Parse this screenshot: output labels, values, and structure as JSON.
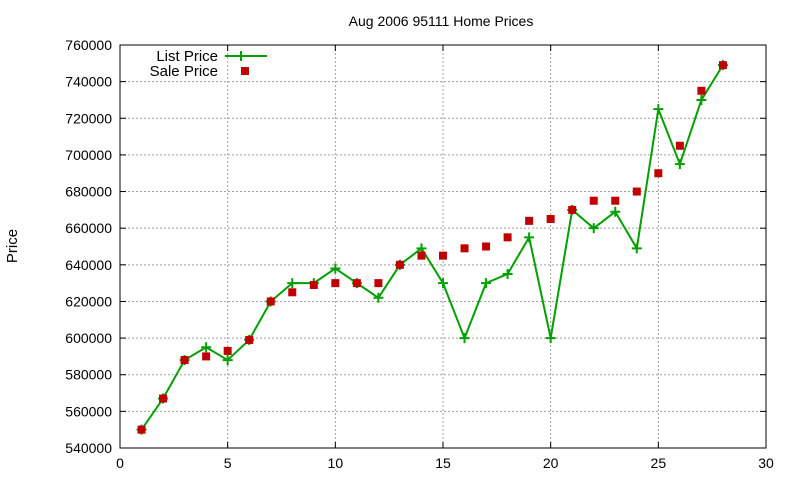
{
  "chart_data": {
    "type": "line",
    "title": "Aug 2006 95111 Home Prices",
    "xlabel": "",
    "ylabel": "Price",
    "xlim": [
      0,
      30
    ],
    "ylim": [
      540000,
      760000
    ],
    "x_ticks": [
      0,
      5,
      10,
      15,
      20,
      25,
      30
    ],
    "y_ticks": [
      540000,
      560000,
      580000,
      600000,
      620000,
      640000,
      660000,
      680000,
      700000,
      720000,
      740000,
      760000
    ],
    "grid": true,
    "legend_position": "top-left",
    "series": [
      {
        "name": "List Price",
        "style": "line+cross",
        "color": "#00a000",
        "x": [
          1,
          2,
          3,
          4,
          5,
          6,
          7,
          8,
          9,
          10,
          11,
          12,
          13,
          14,
          15,
          16,
          17,
          18,
          19,
          20,
          21,
          22,
          23,
          24,
          25,
          26,
          27,
          28
        ],
        "values": [
          550000,
          567000,
          588000,
          595000,
          588000,
          599000,
          620000,
          630000,
          630000,
          638000,
          630000,
          622000,
          640000,
          649000,
          630000,
          600000,
          630000,
          635000,
          655000,
          600000,
          670000,
          660000,
          669000,
          649000,
          725000,
          695000,
          730000,
          749000
        ]
      },
      {
        "name": "Sale Price",
        "style": "square",
        "color": "#c00000",
        "x": [
          1,
          2,
          3,
          4,
          5,
          6,
          7,
          8,
          9,
          10,
          11,
          12,
          13,
          14,
          15,
          16,
          17,
          18,
          19,
          20,
          21,
          22,
          23,
          24,
          25,
          26,
          27,
          28
        ],
        "values": [
          550000,
          567000,
          588000,
          590000,
          593000,
          599000,
          620000,
          625000,
          629000,
          630000,
          630000,
          630000,
          640000,
          645000,
          645000,
          649000,
          650000,
          655000,
          664000,
          665000,
          670000,
          675000,
          675000,
          680000,
          690000,
          705000,
          735000,
          749000
        ]
      }
    ]
  }
}
